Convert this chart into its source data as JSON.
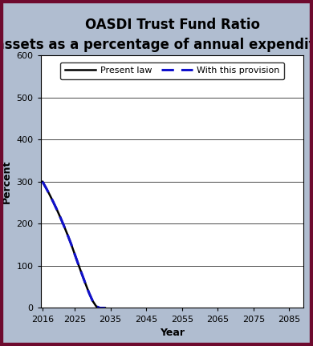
{
  "title": "OASDI Trust Fund Ratio",
  "subtitle": "(assets as a percentage of annual expenditures)",
  "xlabel": "Year",
  "ylabel": "Percent",
  "xlim": [
    2015.5,
    2089
  ],
  "ylim": [
    0,
    600
  ],
  "xticks": [
    2016,
    2025,
    2035,
    2045,
    2055,
    2065,
    2075,
    2085
  ],
  "yticks": [
    0,
    100,
    200,
    300,
    400,
    500,
    600
  ],
  "present_law_x": [
    2016,
    2017,
    2018,
    2019,
    2020,
    2021,
    2022,
    2023,
    2024,
    2025,
    2026,
    2027,
    2028,
    2029,
    2030,
    2031,
    2032,
    2033,
    2033.5
  ],
  "present_law_y": [
    300,
    285,
    269,
    252,
    234,
    215,
    195,
    174,
    152,
    128,
    104,
    81,
    58,
    36,
    17,
    4,
    0,
    0,
    0
  ],
  "provision_x": [
    2016,
    2017,
    2018,
    2019,
    2020,
    2021,
    2022,
    2023,
    2024,
    2025,
    2026,
    2027,
    2028,
    2029,
    2030,
    2031,
    2032,
    2033,
    2033.5
  ],
  "provision_y": [
    300,
    285,
    269,
    252,
    234,
    215,
    195,
    174,
    152,
    128,
    104,
    81,
    58,
    36,
    17,
    4,
    0,
    0,
    0
  ],
  "present_law_color": "#000000",
  "provision_color": "#1111cc",
  "legend_labels": [
    "Present law",
    "With this provision"
  ],
  "background_color": "#b0bdd0",
  "plot_bg_color": "#ffffff",
  "border_color": "#6e0a2e",
  "title_fontsize": 12,
  "subtitle_fontsize": 9,
  "axis_label_fontsize": 9,
  "tick_fontsize": 8,
  "legend_fontsize": 8
}
